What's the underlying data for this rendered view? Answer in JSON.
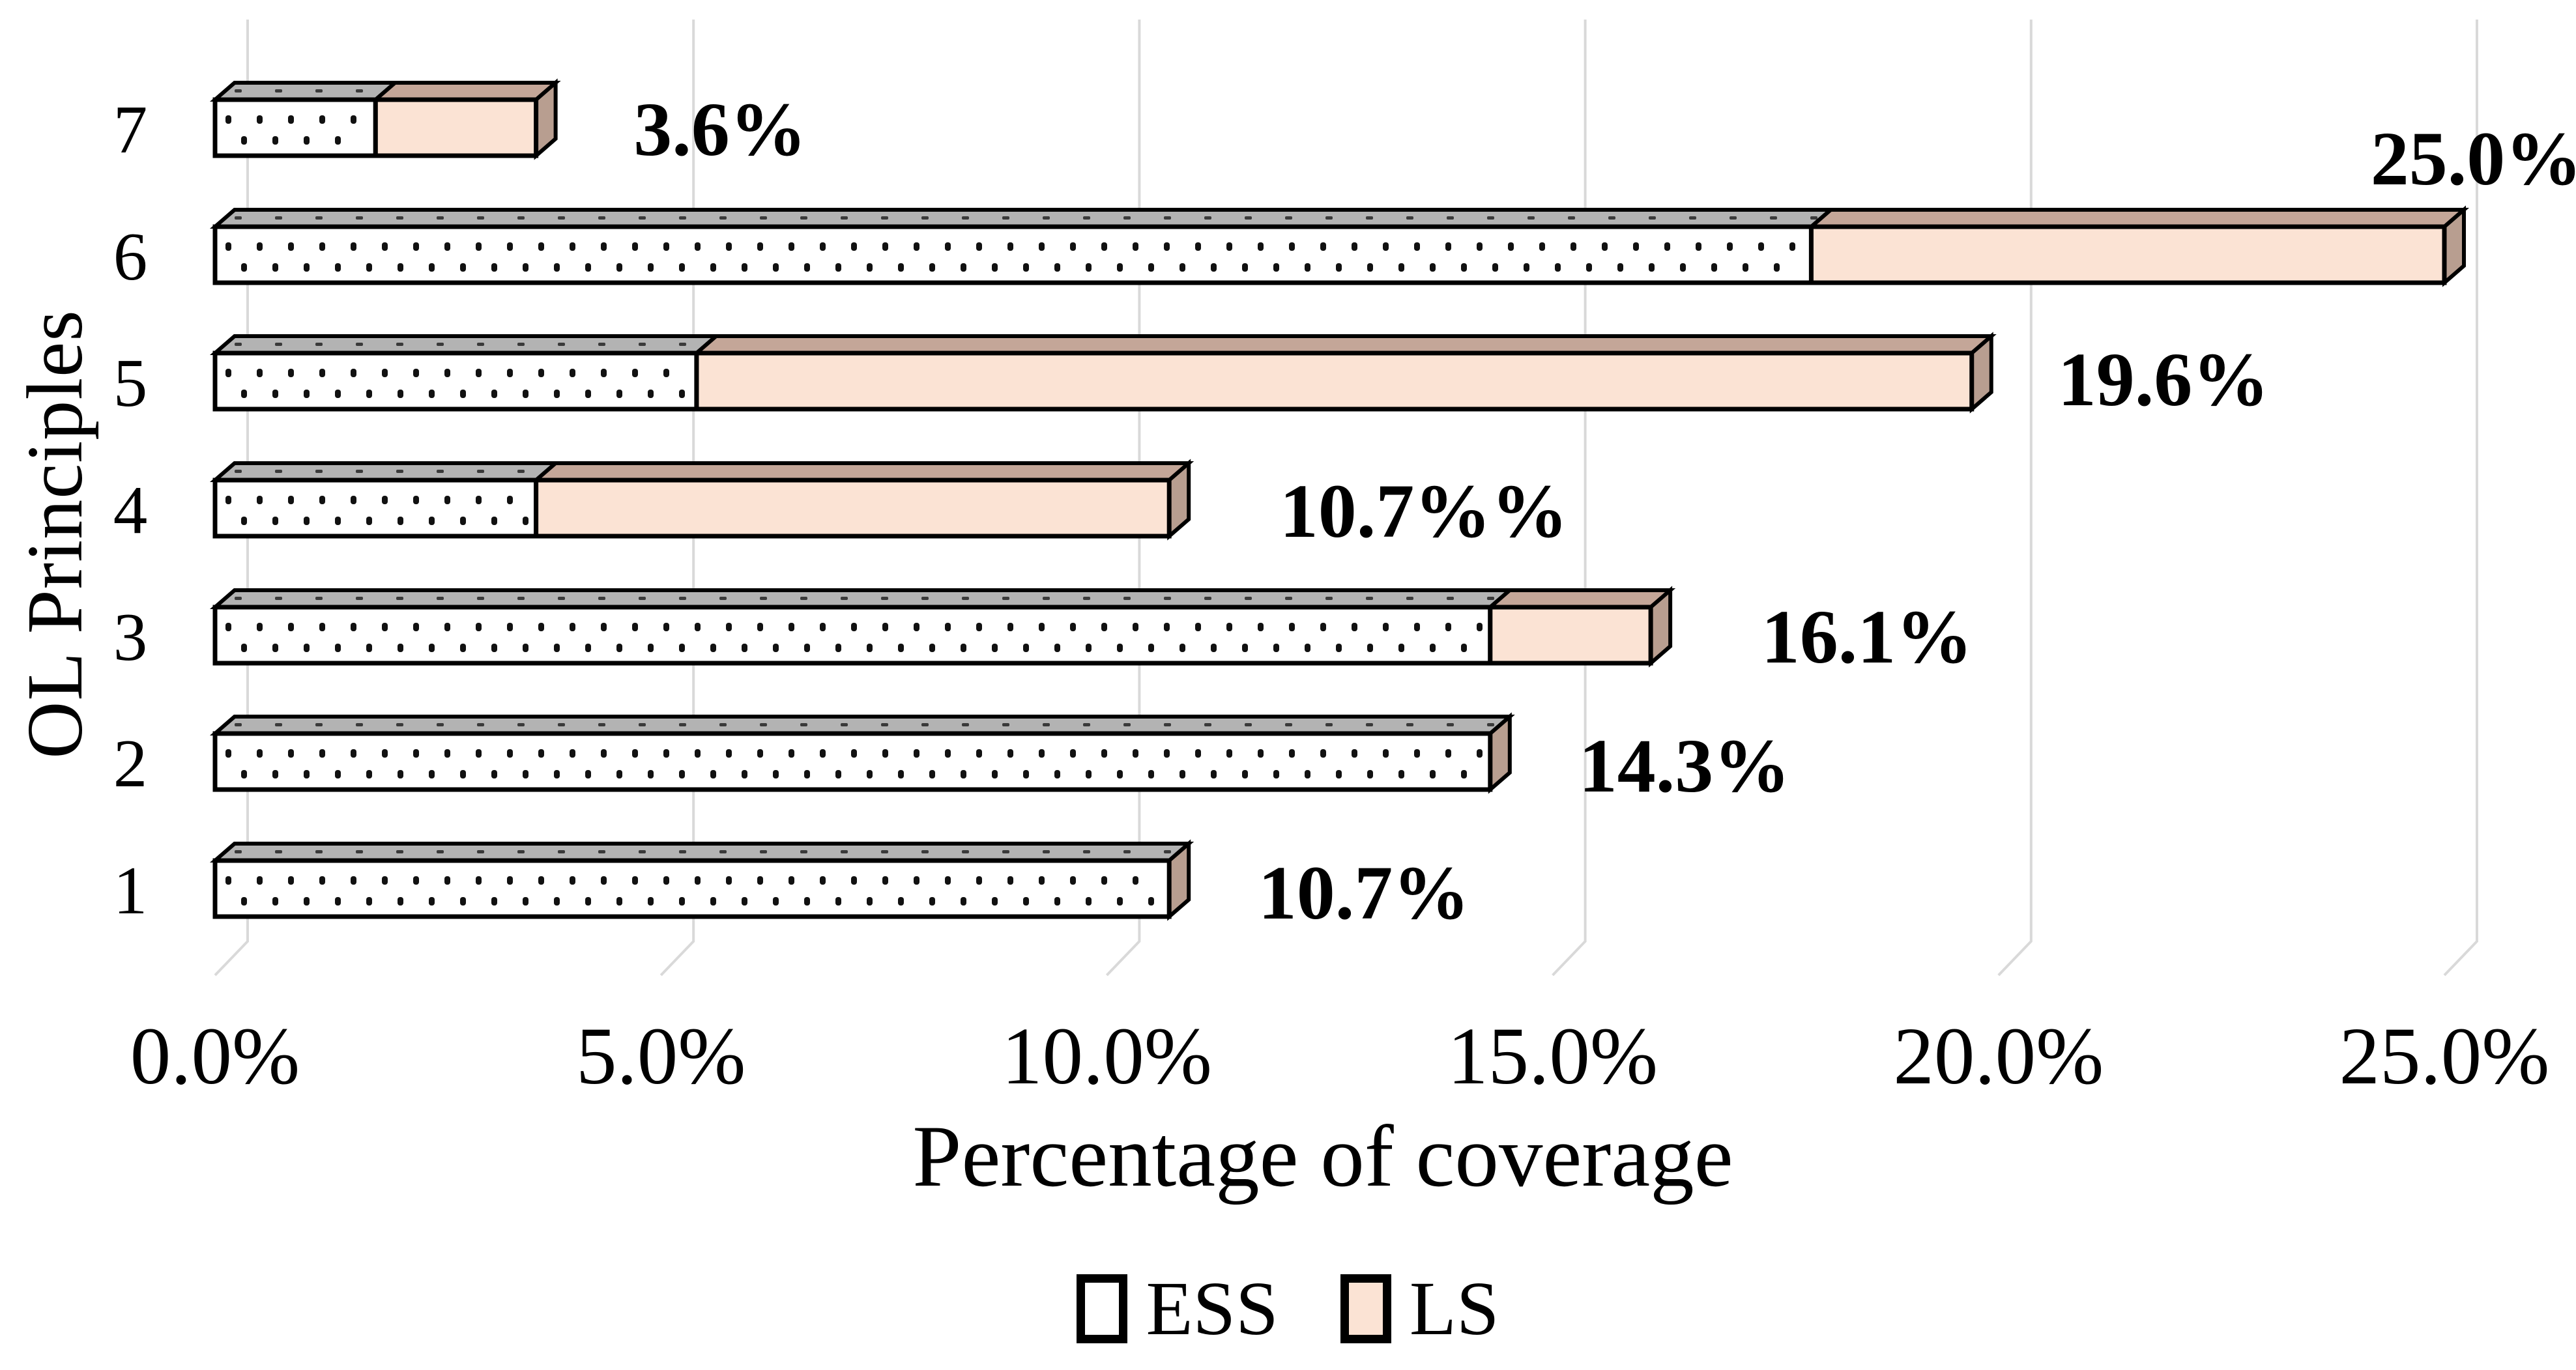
{
  "chart_data": {
    "type": "bar",
    "orientation": "horizontal",
    "stacked": true,
    "style": "3d-extruded",
    "title": "",
    "xlabel": "Percentage of coverage",
    "ylabel": "OL Principles",
    "categories": [
      "7",
      "6",
      "5",
      "4",
      "3",
      "2",
      "1"
    ],
    "series": [
      {
        "name": "ESS",
        "values": [
          1.8,
          17.9,
          5.4,
          3.6,
          14.3,
          14.3,
          10.7
        ]
      },
      {
        "name": "LS",
        "values": [
          1.8,
          7.1,
          14.3,
          7.1,
          1.8,
          0,
          0
        ]
      }
    ],
    "totals_labels": [
      "3.6%",
      "25.0%",
      "19.6%",
      "10.7%%",
      "16.1%",
      "14.3%",
      "10.7%"
    ],
    "x_ticks": [
      "0.0%",
      "5.0%",
      "10.0%",
      "15.0%",
      "20.0%",
      "25.0%"
    ],
    "xlim": [
      0,
      25
    ],
    "grid": true,
    "legend_position": "bottom",
    "colors": {
      "ess_fill": "#ffffff",
      "ess_top": "#b3b3b3",
      "ls_fill": "#fbe3d4",
      "ls_top": "#c4a698",
      "ls_side": "#b89e90",
      "outline": "#000000",
      "gridline": "#d9d9d9",
      "dot": "#111111"
    }
  },
  "legend": {
    "items": [
      {
        "label": "ESS"
      },
      {
        "label": "LS"
      }
    ]
  }
}
